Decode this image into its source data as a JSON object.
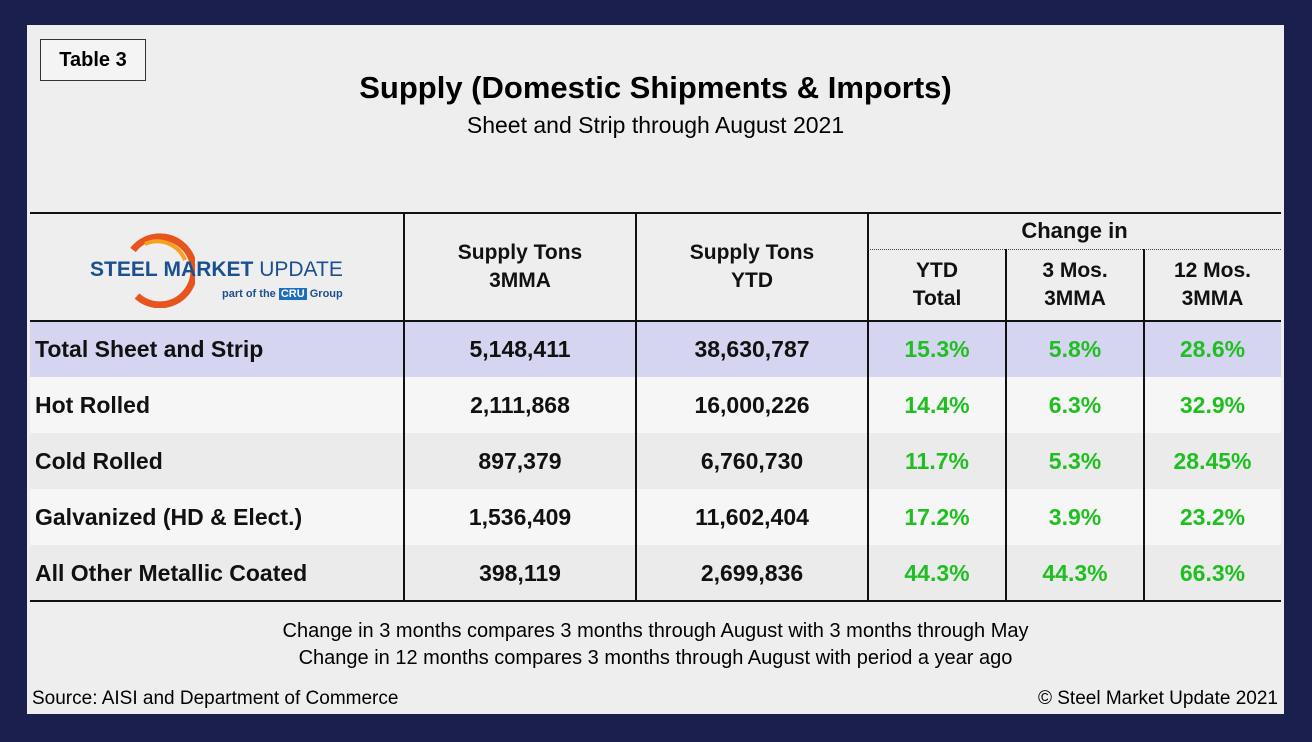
{
  "header": {
    "badge": "Table 3",
    "title": "Supply (Domestic Shipments & Imports)",
    "subtitle": "Sheet and Strip through August 2021"
  },
  "logo": {
    "words": [
      "STEEL",
      "MARKET",
      "UPDATE"
    ],
    "tagline": "part of the",
    "group_badge": "CRU",
    "group": "Group"
  },
  "table": {
    "columns": [
      [
        "Supply Tons",
        "3MMA"
      ],
      [
        "Supply Tons",
        "YTD"
      ],
      [
        "YTD",
        "Total"
      ],
      [
        "3 Mos.",
        "3MMA"
      ],
      [
        "12 Mos.",
        "3MMA"
      ]
    ],
    "group_header": "Change in",
    "rows": [
      [
        "Total Sheet and Strip",
        "5,148,411",
        "38,630,787",
        "15.3%",
        "5.8%",
        "28.6%"
      ],
      [
        "Hot Rolled",
        "2,111,868",
        "16,000,226",
        "14.4%",
        "6.3%",
        "32.9%"
      ],
      [
        "Cold Rolled",
        "897,379",
        "6,760,730",
        "11.7%",
        "5.3%",
        "28.45%"
      ],
      [
        "Galvanized (HD & Elect.)",
        "1,536,409",
        "11,602,404",
        "17.2%",
        "3.9%",
        "23.2%"
      ],
      [
        "All Other Metallic Coated",
        "398,119",
        "2,699,836",
        "44.3%",
        "44.3%",
        "66.3%"
      ]
    ]
  },
  "footer": {
    "notes": [
      "Change in 3 months compares 3 months through August with 3 months through May",
      "Change in 12 months compares 3 months through August with period a year ago"
    ],
    "source": "Source: AISI and Department of Commerce",
    "copyright": "© Steel Market Update 2021"
  }
}
